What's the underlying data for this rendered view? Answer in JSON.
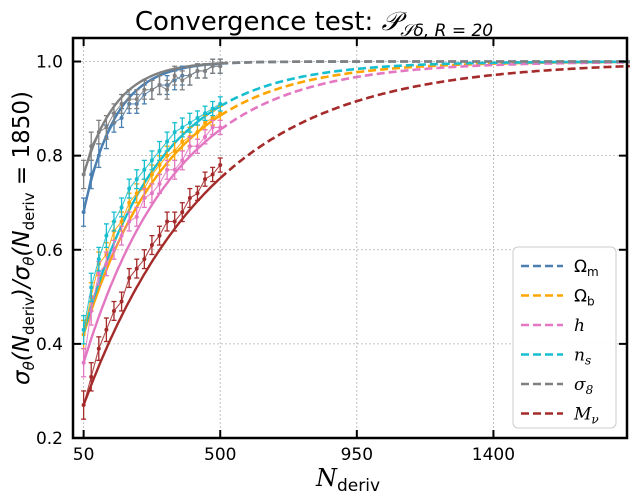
{
  "chart_data": {
    "type": "line",
    "title": "Convergence test: ",
    "title_math": "𝒫",
    "title_math_sub": "𝒮δ, R = 20",
    "xlabel": "N",
    "xlabel_sub": "deriv",
    "ylabel_parts": [
      "σ",
      "θ",
      "(N",
      "deriv",
      ")/σ",
      "θ",
      "(N",
      "deriv",
      " = 1850)"
    ],
    "xlim": [
      15,
      1840
    ],
    "ylim": [
      0.2,
      1.05
    ],
    "xticks": [
      50,
      500,
      950,
      1400
    ],
    "xtick_labels": [
      "50",
      "500",
      "950",
      "1400"
    ],
    "yticks": [
      0.2,
      0.4,
      0.6,
      0.8,
      1.0
    ],
    "ytick_labels": [
      "0.2",
      "0.4",
      "0.6",
      "0.8",
      "1.0"
    ],
    "grid": true,
    "legend_position": "lower-right",
    "fit_x_range": [
      50,
      1850
    ],
    "fit_solid_until": 500,
    "series": [
      {
        "name": "Ω",
        "name_sub": "m",
        "upright": true,
        "color": "#4a7fb0",
        "y0": 0.68,
        "k": 0.0095
      },
      {
        "name": "Ω",
        "name_sub": "b",
        "upright": true,
        "color": "#ffa500",
        "y0": 0.42,
        "k": 0.0036
      },
      {
        "name": "h",
        "name_sub": "",
        "upright": false,
        "color": "#e377c2",
        "y0": 0.36,
        "k": 0.0033
      },
      {
        "name": "n",
        "name_sub": "s",
        "upright": false,
        "color": "#17becf",
        "y0": 0.425,
        "k": 0.004
      },
      {
        "name": "σ",
        "name_sub": "8",
        "upright": false,
        "color": "#808080",
        "y0": 0.76,
        "k": 0.0092
      },
      {
        "name": "M",
        "name_sub": "ν",
        "upright": false,
        "color": "#a52a2a",
        "y0": 0.27,
        "k": 0.0024
      }
    ],
    "measured_points": {
      "x": [
        50,
        75,
        100,
        125,
        150,
        175,
        200,
        225,
        250,
        275,
        300,
        325,
        350,
        375,
        400,
        425,
        450,
        475,
        500
      ],
      "Omega_m": [
        0.68,
        0.76,
        0.8,
        0.84,
        0.87,
        0.88,
        0.91,
        0.91,
        0.93,
        0.94,
        0.95,
        0.95,
        0.96,
        0.97,
        0.97,
        0.98,
        0.98,
        0.99,
        0.99
      ],
      "Omega_b": [
        0.42,
        0.5,
        0.57,
        0.59,
        0.64,
        0.66,
        0.7,
        0.72,
        0.73,
        0.76,
        0.78,
        0.8,
        0.81,
        0.83,
        0.84,
        0.85,
        0.87,
        0.88,
        0.89
      ],
      "h": [
        0.36,
        0.47,
        0.55,
        0.57,
        0.6,
        0.63,
        0.66,
        0.67,
        0.71,
        0.72,
        0.74,
        0.77,
        0.77,
        0.79,
        0.82,
        0.82,
        0.84,
        0.86,
        0.86
      ],
      "n_s": [
        0.43,
        0.52,
        0.58,
        0.63,
        0.66,
        0.69,
        0.73,
        0.75,
        0.77,
        0.79,
        0.81,
        0.83,
        0.85,
        0.86,
        0.87,
        0.88,
        0.89,
        0.9,
        0.91
      ],
      "sigma_8": [
        0.76,
        0.82,
        0.85,
        0.86,
        0.89,
        0.91,
        0.92,
        0.92,
        0.94,
        0.94,
        0.95,
        0.94,
        0.97,
        0.96,
        0.97,
        0.98,
        0.98,
        0.99,
        0.99
      ],
      "M_nu": [
        0.27,
        0.33,
        0.39,
        0.43,
        0.47,
        0.49,
        0.54,
        0.56,
        0.58,
        0.61,
        0.63,
        0.66,
        0.66,
        0.68,
        0.71,
        0.72,
        0.75,
        0.76,
        0.78
      ],
      "error_bars": [
        0.03,
        0.03,
        0.025,
        0.025,
        0.02,
        0.02,
        0.02,
        0.02,
        0.02,
        0.02,
        0.02,
        0.02,
        0.02,
        0.02,
        0.02,
        0.015,
        0.015,
        0.015,
        0.015
      ]
    }
  }
}
